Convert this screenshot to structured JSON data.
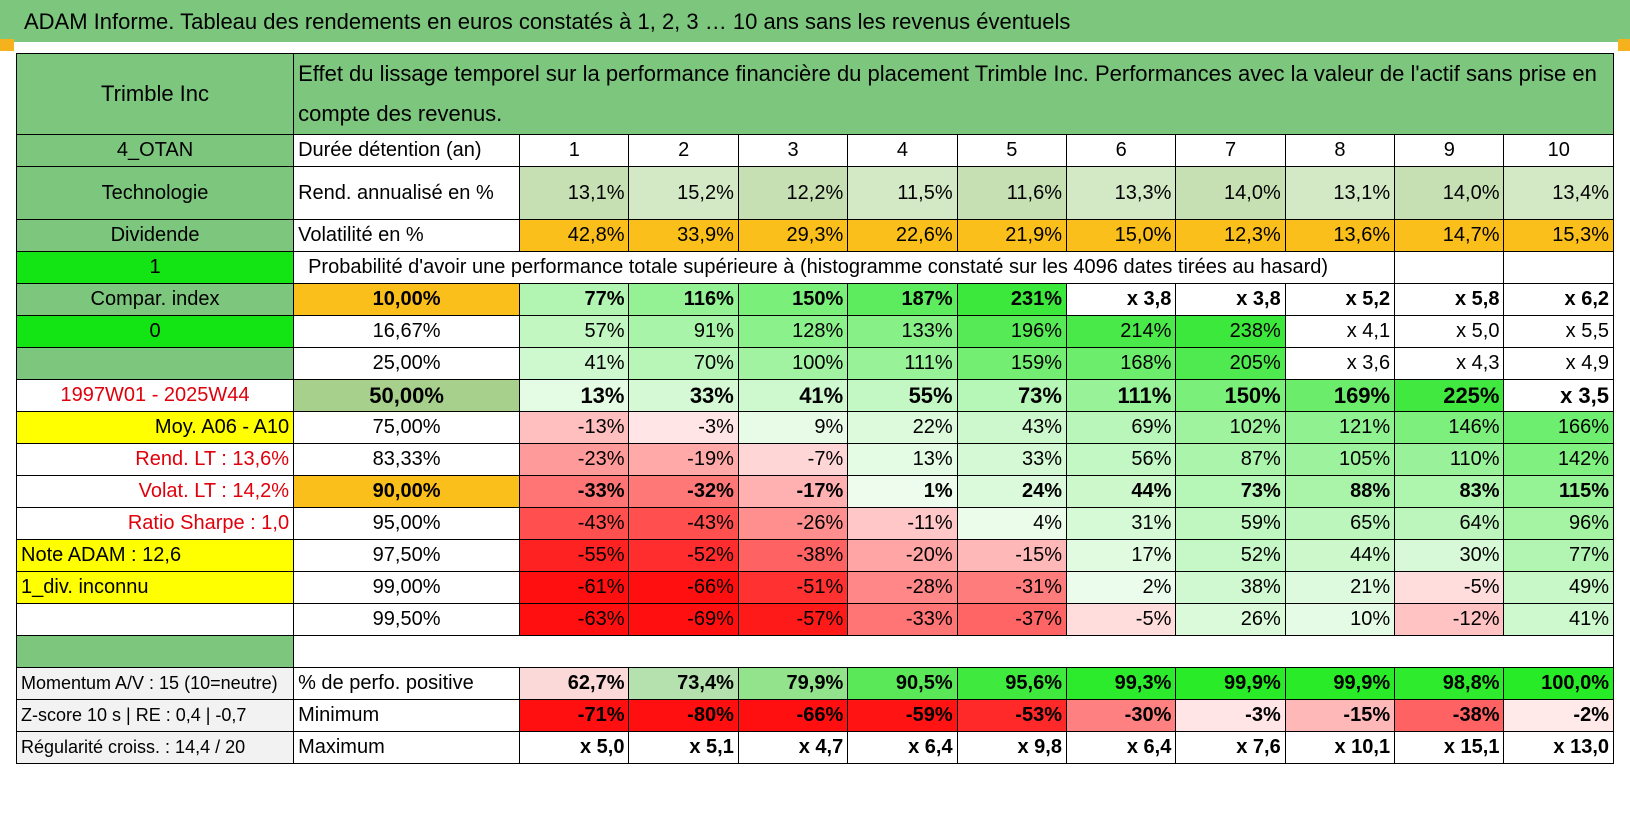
{
  "title": "ADAM Informe. Tableau des rendements en euros constatés à 1, 2, 3 … 10 ans sans les revenus éventuels",
  "colors": {
    "header_green": "#7dc67e",
    "orange": "#fbbf1c",
    "yellow": "#ffff00",
    "bright_green": "#13e413",
    "avg_green": "#a8d08d",
    "red_text": "#e0000b"
  },
  "header": {
    "company": "Trimble Inc",
    "description": "Effet du lissage temporel sur la performance financière du placement Trimble Inc. Performances avec la valeur de l'actif sans prise en compte des revenus."
  },
  "years": [
    "1",
    "2",
    "3",
    "4",
    "5",
    "6",
    "7",
    "8",
    "9",
    "10"
  ],
  "info_rows": [
    {
      "side": "4_OTAN",
      "label": "Durée détention (an)"
    },
    {
      "side": "Technologie",
      "label": "Rend. annualisé en %",
      "values": [
        "13,1%",
        "15,2%",
        "12,2%",
        "11,5%",
        "11,6%",
        "13,3%",
        "14,0%",
        "13,1%",
        "14,0%",
        "13,4%"
      ]
    },
    {
      "side": "Dividende",
      "label": "Volatilité en %",
      "values": [
        "42,8%",
        "33,9%",
        "29,3%",
        "22,6%",
        "21,9%",
        "15,0%",
        "12,3%",
        "13,6%",
        "14,7%",
        "15,3%"
      ]
    }
  ],
  "probability_header": {
    "side": "1",
    "text": "Probabilité d'avoir une performance totale supérieure à (histogramme constaté sur les 4096 dates tirées au hasard)"
  },
  "prob_rows": [
    {
      "side": "Compar. index",
      "pct": "10,00%",
      "values": [
        "77%",
        "116%",
        "150%",
        "187%",
        "231%",
        "x 3,8",
        "x 3,8",
        "x 5,2",
        "x 5,8",
        "x 6,2"
      ]
    },
    {
      "side": "0",
      "pct": "16,67%",
      "values": [
        "57%",
        "91%",
        "128%",
        "133%",
        "196%",
        "214%",
        "238%",
        "x 4,1",
        "x 5,0",
        "x 5,5"
      ]
    },
    {
      "side": "",
      "pct": "25,00%",
      "values": [
        "41%",
        "70%",
        "100%",
        "111%",
        "159%",
        "168%",
        "205%",
        "x 3,6",
        "x 4,3",
        "x 4,9"
      ]
    },
    {
      "side": "1997W01 - 2025W44",
      "pct": "50,00%",
      "values": [
        "13%",
        "33%",
        "41%",
        "55%",
        "73%",
        "111%",
        "150%",
        "169%",
        "225%",
        "x 3,5"
      ]
    },
    {
      "side": "Moy. A06 - A10",
      "pct": "75,00%",
      "values": [
        "-13%",
        "-3%",
        "9%",
        "22%",
        "43%",
        "69%",
        "102%",
        "121%",
        "146%",
        "166%"
      ]
    },
    {
      "side": "Rend. LT :     13,6%",
      "pct": "83,33%",
      "values": [
        "-23%",
        "-19%",
        "-7%",
        "13%",
        "33%",
        "56%",
        "87%",
        "105%",
        "110%",
        "142%"
      ]
    },
    {
      "side": "Volat. LT :     14,2%",
      "pct": "90,00%",
      "values": [
        "-33%",
        "-32%",
        "-17%",
        "1%",
        "24%",
        "44%",
        "73%",
        "88%",
        "83%",
        "115%"
      ]
    },
    {
      "side": "Ratio Sharpe :     1,0",
      "pct": "95,00%",
      "values": [
        "-43%",
        "-43%",
        "-26%",
        "-11%",
        "4%",
        "31%",
        "59%",
        "65%",
        "64%",
        "96%"
      ]
    },
    {
      "side": "Note ADAM : 12,6",
      "pct": "97,50%",
      "values": [
        "-55%",
        "-52%",
        "-38%",
        "-20%",
        "-15%",
        "17%",
        "52%",
        "44%",
        "30%",
        "77%"
      ]
    },
    {
      "side": "1_div. inconnu",
      "pct": "99,00%",
      "values": [
        "-61%",
        "-66%",
        "-51%",
        "-28%",
        "-31%",
        "2%",
        "38%",
        "21%",
        "-5%",
        "49%"
      ]
    },
    {
      "side": "",
      "pct": "99,50%",
      "values": [
        "-63%",
        "-69%",
        "-57%",
        "-33%",
        "-37%",
        "-5%",
        "26%",
        "10%",
        "-12%",
        "41%"
      ]
    }
  ],
  "bottom_rows": [
    {
      "side": "Momentum A/V : 15 (10=neutre)",
      "label": "% de perfo. positive",
      "values": [
        "62,7%",
        "73,4%",
        "79,9%",
        "90,5%",
        "95,6%",
        "99,3%",
        "99,9%",
        "99,9%",
        "98,8%",
        "100,0%"
      ]
    },
    {
      "side": "Z-score 10 s | RE : 0,4 | -0,7",
      "label": "Minimum",
      "values": [
        "-71%",
        "-80%",
        "-66%",
        "-59%",
        "-53%",
        "-30%",
        "-3%",
        "-15%",
        "-38%",
        "-2%"
      ]
    },
    {
      "side": "Régularité croiss. : 14,4 / 20",
      "label": "Maximum",
      "values": [
        "x 5,0",
        "x 5,1",
        "x 4,7",
        "x 6,4",
        "x 9,8",
        "x 6,4",
        "x 7,6",
        "x 10,1",
        "x 15,1",
        "x 13,0"
      ]
    }
  ]
}
